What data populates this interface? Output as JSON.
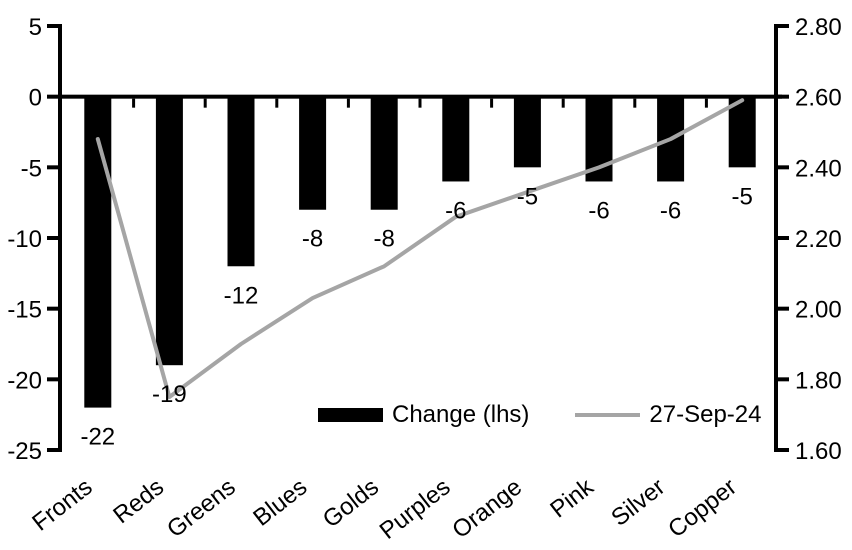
{
  "chart_data": {
    "type": "combo-bar-line",
    "title": "",
    "categories": [
      "Fronts",
      "Reds",
      "Greens",
      "Blues",
      "Golds",
      "Purples",
      "Orange",
      "Pink",
      "Silver",
      "Copper"
    ],
    "series": [
      {
        "name": "Change (lhs)",
        "type": "bar",
        "axis": "left",
        "color": "#000000",
        "values": [
          -22,
          -19,
          -12,
          -8,
          -8,
          -6,
          -5,
          -6,
          -6,
          -5
        ],
        "data_labels": [
          "-22",
          "-19",
          "-12",
          "-8",
          "-8",
          "-6",
          "-5",
          "-6",
          "-6",
          "-5"
        ]
      },
      {
        "name": "27-Sep-24",
        "type": "line",
        "axis": "right",
        "color": "#a5a5a5",
        "values": [
          2.48,
          1.75,
          1.9,
          2.03,
          2.12,
          2.26,
          2.33,
          2.4,
          2.48,
          2.59
        ]
      }
    ],
    "left_axis": {
      "min": -25,
      "max": 5,
      "step": 5,
      "tick_labels": [
        "5",
        "0",
        "-5",
        "-10",
        "-15",
        "-20",
        "-25"
      ]
    },
    "right_axis": {
      "min": 1.6,
      "max": 2.8,
      "step": 0.2,
      "tick_labels": [
        "2.80",
        "2.60",
        "2.40",
        "2.20",
        "2.00",
        "1.80",
        "1.60"
      ]
    },
    "legend": {
      "position": "bottom-inside",
      "items": [
        {
          "swatch": "bar",
          "label": "Change (lhs)"
        },
        {
          "swatch": "line",
          "label": "27-Sep-24"
        }
      ]
    },
    "grid": "off",
    "category_label_rotation_deg": -38
  }
}
